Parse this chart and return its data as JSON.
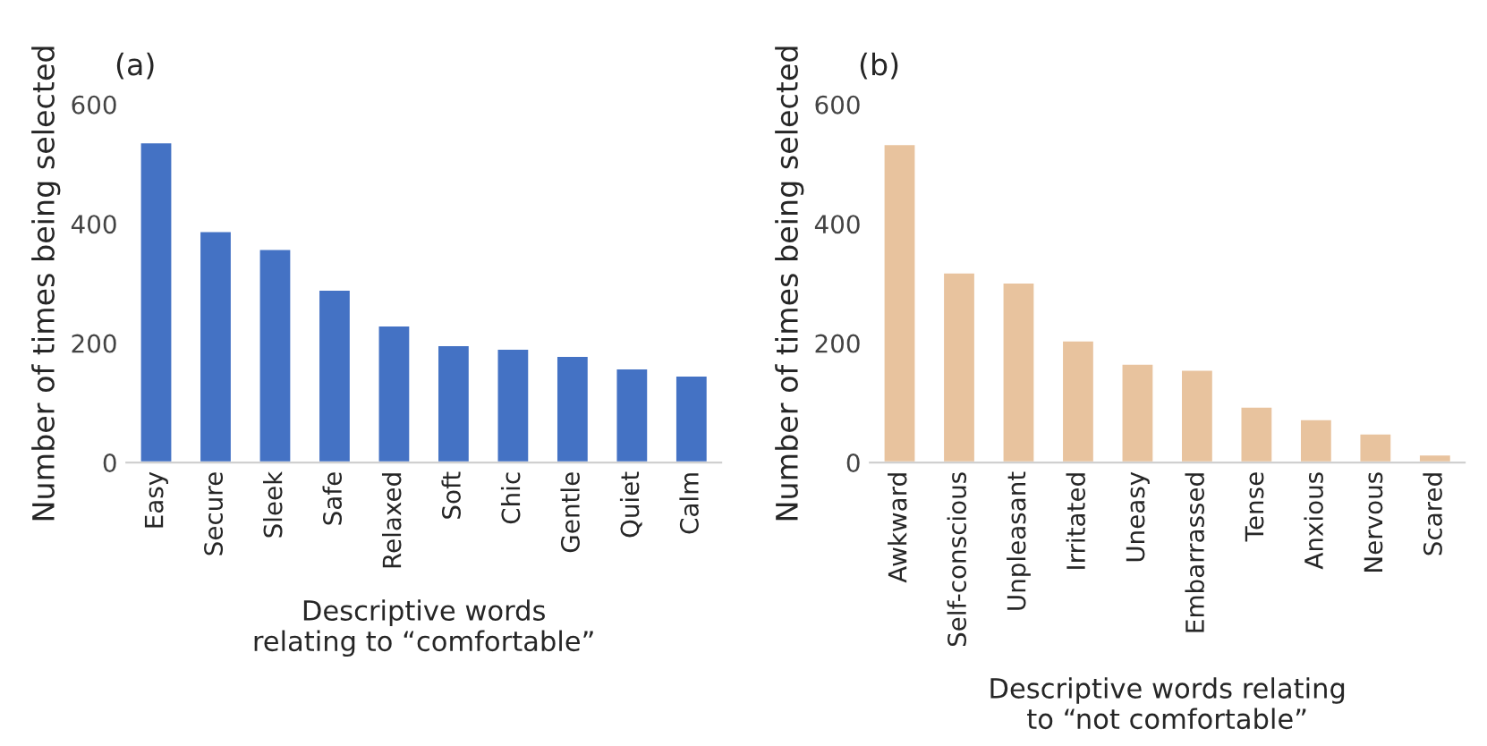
{
  "chart_data": [
    {
      "type": "bar",
      "title": "(a)",
      "xlabel": "Descriptive words\nrelating to “comfortable”",
      "ylabel": "Number of times being selected",
      "categories": [
        "Easy",
        "Secure",
        "Sleek",
        "Safe",
        "Relaxed",
        "Soft",
        "Chic",
        "Gentle",
        "Quiet",
        "Calm"
      ],
      "values": [
        537,
        388,
        358,
        290,
        230,
        197,
        191,
        179,
        158,
        146
      ],
      "color": "#4472c4",
      "ylim": [
        0,
        600
      ],
      "yticks": [
        0,
        200,
        400,
        600
      ],
      "grid": false
    },
    {
      "type": "bar",
      "title": "(b)",
      "xlabel": "Descriptive words relating\nto “not comfortable”",
      "ylabel": "Number of times being selected",
      "categories": [
        "Awkward",
        "Self-conscious",
        "Unpleasant",
        "Irritated",
        "Uneasy",
        "Embarrassed",
        "Tense",
        "Anxious",
        "Nervous",
        "Scared"
      ],
      "values": [
        534,
        319,
        302,
        205,
        166,
        156,
        94,
        73,
        49,
        14
      ],
      "color": "#e8c39e",
      "ylim": [
        0,
        600
      ],
      "yticks": [
        0,
        200,
        400,
        600
      ],
      "grid": false
    }
  ]
}
